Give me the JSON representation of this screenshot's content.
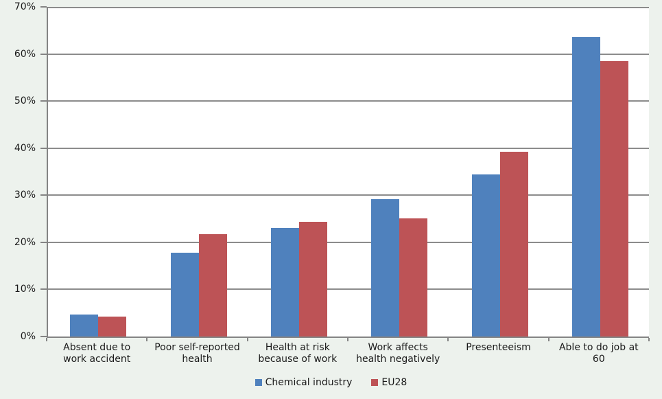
{
  "chart_data": {
    "type": "bar",
    "title": "",
    "xlabel": "",
    "ylabel": "",
    "categories": [
      "Absent due to\nwork accident",
      "Poor self-reported\nhealth",
      "Health at risk\nbecause of work",
      "Work affects\nhealth negatively",
      "Presenteeism",
      "Able to do job at\n60"
    ],
    "series": [
      {
        "name": "Chemical industry",
        "color": "#4f81bd",
        "values": [
          4.7,
          17.8,
          23.0,
          29.2,
          34.4,
          63.6
        ]
      },
      {
        "name": "EU28",
        "color": "#bd5356",
        "values": [
          4.3,
          21.7,
          24.3,
          25.1,
          39.2,
          58.5
        ]
      }
    ],
    "ylim": [
      0,
      70
    ],
    "ytick_step": 10,
    "ytick_labels": [
      "0%",
      "10%",
      "20%",
      "30%",
      "40%",
      "50%",
      "60%",
      "70%"
    ],
    "grid": true,
    "legend_position": "bottom"
  },
  "colors": {
    "background": "#edf2ed",
    "plot_background": "#ffffff",
    "gridline": "#8c8c8c",
    "axis": "#848484",
    "text": "#1a1a1a",
    "series_blue": "#4f81bd",
    "series_red": "#bd5356"
  }
}
